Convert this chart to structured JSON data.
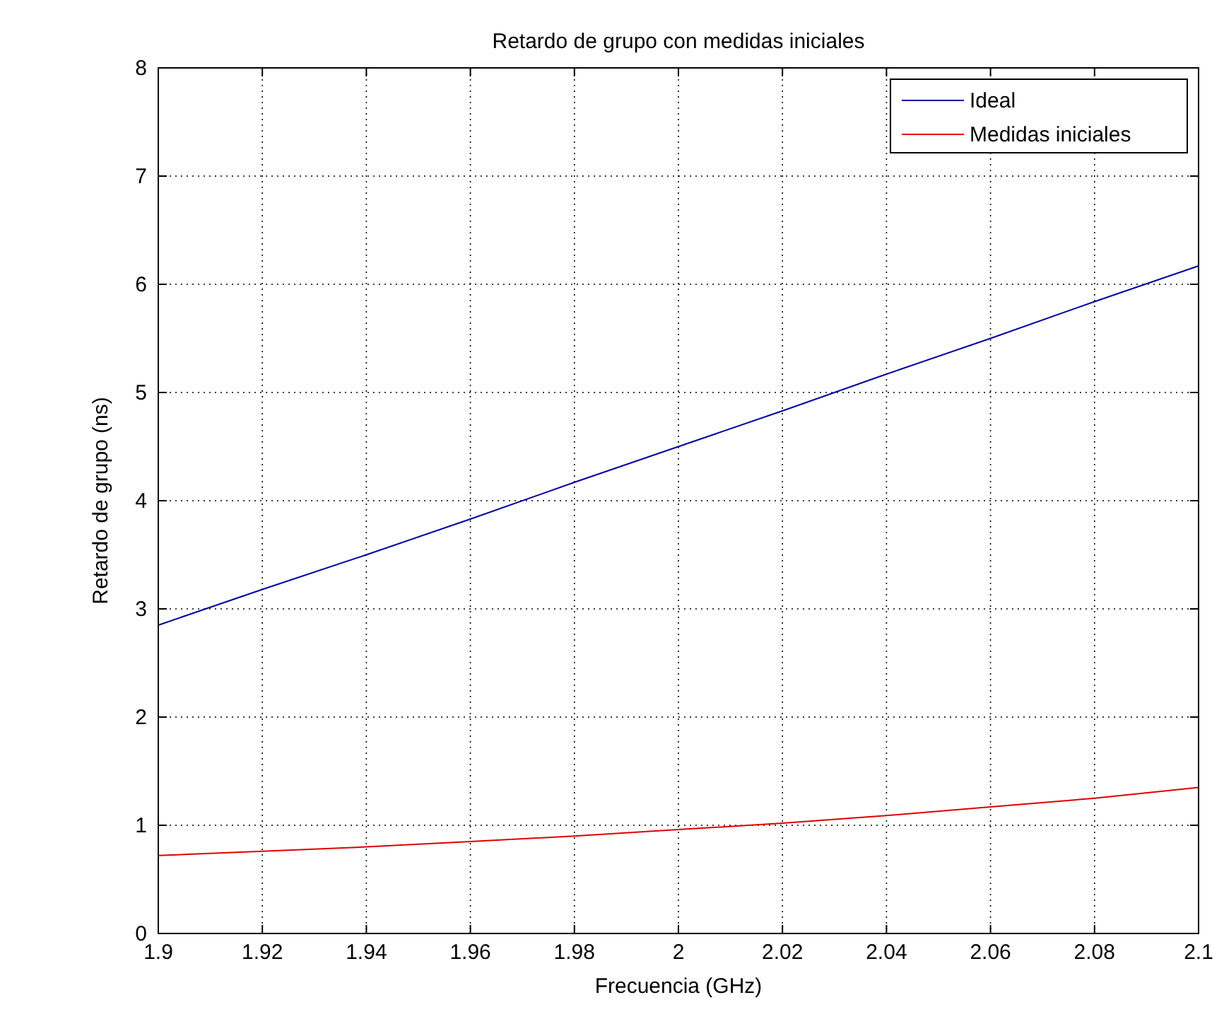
{
  "chart_data": {
    "type": "line",
    "title": "Retardo de grupo con medidas iniciales",
    "xlabel": "Frecuencia (GHz)",
    "ylabel": "Retardo de grupo (ns)",
    "x": [
      1.9,
      1.92,
      1.94,
      1.96,
      1.98,
      2.0,
      2.02,
      2.04,
      2.06,
      2.08,
      2.1
    ],
    "series": [
      {
        "name": "Ideal",
        "color": "#0000a0",
        "values": [
          2.85,
          3.18,
          3.5,
          3.83,
          4.17,
          4.5,
          4.83,
          5.17,
          5.5,
          5.84,
          6.17
        ]
      },
      {
        "name": "Medidas iniciales",
        "color": "#e00000",
        "values": [
          0.72,
          0.76,
          0.8,
          0.85,
          0.9,
          0.96,
          1.02,
          1.09,
          1.17,
          1.25,
          1.35
        ]
      }
    ],
    "xlim": [
      1.9,
      2.1
    ],
    "xticks": [
      1.9,
      1.92,
      1.94,
      1.96,
      1.98,
      2,
      2.02,
      2.04,
      2.06,
      2.08,
      2.1
    ],
    "ylim": [
      0,
      8
    ],
    "yticks": [
      0,
      1,
      2,
      3,
      4,
      5,
      6,
      7,
      8
    ],
    "grid": true,
    "legend": "top right",
    "marker": "none",
    "line_style": "solid"
  }
}
